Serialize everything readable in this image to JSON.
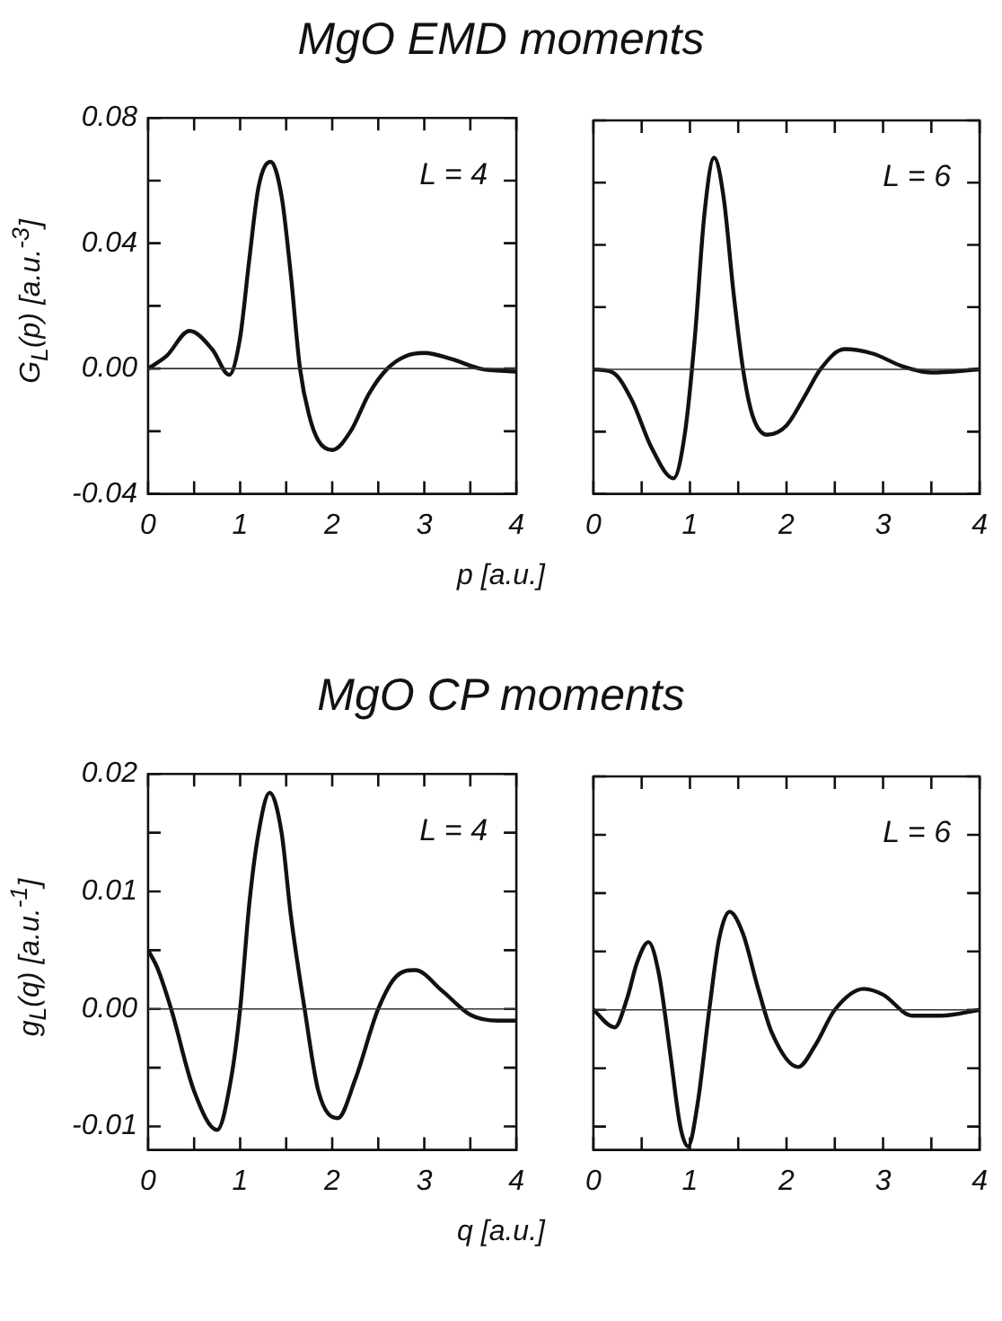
{
  "chart_data": [
    {
      "type": "line",
      "title": "MgO   EMD   moments",
      "xlabel": "p  [a.u.]",
      "ylabel": "G$_{L}$(p)  [a.u.$^{-3}$]",
      "annotations": [
        "L = 4"
      ],
      "marker": "none",
      "line_style": "solid",
      "grid": false,
      "xlim": [
        0,
        4
      ],
      "xticks": [
        0,
        {
          "value": 0.5,
          "label": null
        },
        1,
        {
          "value": 1.5,
          "label": null
        },
        2,
        {
          "value": 2.5,
          "label": null
        },
        3,
        {
          "value": 3.5,
          "label": null
        },
        4
      ],
      "ylim": [
        -0.04,
        0.08
      ],
      "yticks": [
        {
          "value": -0.04,
          "label": "-0.04"
        },
        {
          "value": -0.02,
          "label": null
        },
        {
          "value": 0,
          "label": "0.00"
        },
        {
          "value": 0.02,
          "label": null
        },
        {
          "value": 0.04,
          "label": "0.04"
        },
        {
          "value": 0.06,
          "label": null
        },
        {
          "value": 0.08,
          "label": "0.08"
        }
      ],
      "ref_lines": [
        {
          "axis": "y",
          "value": 0
        }
      ],
      "series": [
        {
          "color": "#111111",
          "x": [
            0,
            0.2,
            0.45,
            0.7,
            0.88,
            1.0,
            1.1,
            1.2,
            1.33,
            1.45,
            1.55,
            1.65,
            1.75,
            1.85,
            2.0,
            2.2,
            2.4,
            2.6,
            2.8,
            3.0,
            3.3,
            3.6,
            4.0
          ],
          "values": [
            0,
            0.004,
            0.012,
            0.006,
            -0.002,
            0.01,
            0.035,
            0.058,
            0.066,
            0.055,
            0.03,
            0,
            -0.015,
            -0.023,
            -0.026,
            -0.02,
            -0.008,
            0,
            0.004,
            0.005,
            0.003,
            0,
            -0.001
          ]
        }
      ]
    },
    {
      "type": "line",
      "annotations": [
        "L = 6"
      ],
      "marker": "none",
      "line_style": "solid",
      "grid": false,
      "tick_labels": "x",
      "xlim": [
        0,
        4
      ],
      "xticks": [
        0,
        {
          "value": 0.5,
          "label": null
        },
        1,
        {
          "value": 1.5,
          "label": null
        },
        2,
        {
          "value": 2.5,
          "label": null
        },
        3,
        {
          "value": 3.5,
          "label": null
        },
        4
      ],
      "ylim": [
        -0.04,
        0.08
      ],
      "yticks": [
        {
          "value": -0.04,
          "label": null
        },
        {
          "value": -0.02,
          "label": null
        },
        {
          "value": 0,
          "label": null
        },
        {
          "value": 0.02,
          "label": null
        },
        {
          "value": 0.04,
          "label": null
        },
        {
          "value": 0.06,
          "label": null
        },
        {
          "value": 0.08,
          "label": null
        }
      ],
      "ref_lines": [
        {
          "axis": "y",
          "value": 0
        }
      ],
      "series": [
        {
          "color": "#111111",
          "x": [
            0,
            0.2,
            0.4,
            0.6,
            0.83,
            0.95,
            1.05,
            1.15,
            1.25,
            1.35,
            1.45,
            1.55,
            1.65,
            1.8,
            2.0,
            2.2,
            2.35,
            2.6,
            2.9,
            3.2,
            3.5,
            4.0
          ],
          "values": [
            0,
            -0.001,
            -0.01,
            -0.025,
            -0.035,
            -0.02,
            0.01,
            0.05,
            0.068,
            0.055,
            0.025,
            0,
            -0.015,
            -0.021,
            -0.018,
            -0.008,
            0,
            0.0065,
            0.005,
            0.001,
            -0.001,
            0
          ]
        }
      ]
    },
    {
      "type": "line",
      "title": "MgO   CP   moments",
      "xlabel": "q  [a.u.]",
      "ylabel": "g$_{L}$(q)  [a.u.$^{-1}$]",
      "annotations": [
        "L = 4"
      ],
      "marker": "none",
      "line_style": "solid",
      "grid": false,
      "xlim": [
        0,
        4
      ],
      "xticks": [
        0,
        {
          "value": 0.5,
          "label": null
        },
        1,
        {
          "value": 1.5,
          "label": null
        },
        2,
        {
          "value": 2.5,
          "label": null
        },
        3,
        {
          "value": 3.5,
          "label": null
        },
        4
      ],
      "ylim": [
        -0.012,
        0.02
      ],
      "yticks": [
        {
          "value": -0.01,
          "label": "-0.01"
        },
        {
          "value": -0.005,
          "label": null
        },
        {
          "value": 0,
          "label": "0.00"
        },
        {
          "value": 0.005,
          "label": null
        },
        {
          "value": 0.01,
          "label": "0.01"
        },
        {
          "value": 0.015,
          "label": null
        },
        {
          "value": 0.02,
          "label": "0.02"
        }
      ],
      "ref_lines": [
        {
          "axis": "y",
          "value": 0
        }
      ],
      "series": [
        {
          "color": "#111111",
          "x": [
            0,
            0.1,
            0.25,
            0.5,
            0.75,
            0.9,
            1.0,
            1.1,
            1.2,
            1.32,
            1.45,
            1.55,
            1.7,
            1.85,
            2.06,
            2.25,
            2.5,
            2.7,
            2.9,
            3.2,
            3.5,
            3.8,
            4.0
          ],
          "values": [
            0.005,
            0.0035,
            0,
            -0.007,
            -0.0103,
            -0.006,
            0,
            0.009,
            0.015,
            0.0184,
            0.015,
            0.008,
            0,
            -0.007,
            -0.0093,
            -0.006,
            0,
            0.0028,
            0.0033,
            0.0015,
            -0.0005,
            -0.001,
            -0.001
          ]
        }
      ]
    },
    {
      "type": "line",
      "annotations": [
        "L = 6"
      ],
      "marker": "none",
      "line_style": "solid",
      "grid": false,
      "tick_labels": "x",
      "xlim": [
        0,
        4
      ],
      "xticks": [
        0,
        {
          "value": 0.5,
          "label": null
        },
        1,
        {
          "value": 1.5,
          "label": null
        },
        2,
        {
          "value": 2.5,
          "label": null
        },
        3,
        {
          "value": 3.5,
          "label": null
        },
        4
      ],
      "ylim": [
        -0.012,
        0.02
      ],
      "yticks": [
        {
          "value": -0.01,
          "label": null
        },
        {
          "value": -0.005,
          "label": null
        },
        {
          "value": 0,
          "label": null
        },
        {
          "value": 0.005,
          "label": null
        },
        {
          "value": 0.01,
          "label": null
        },
        {
          "value": 0.015,
          "label": null
        },
        {
          "value": 0.02,
          "label": null
        }
      ],
      "ref_lines": [
        {
          "axis": "y",
          "value": 0
        }
      ],
      "series": [
        {
          "color": "#111111",
          "x": [
            0,
            0.22,
            0.35,
            0.45,
            0.57,
            0.68,
            0.8,
            0.9,
            0.98,
            1.08,
            1.2,
            1.3,
            1.41,
            1.55,
            1.7,
            1.85,
            2.12,
            2.3,
            2.5,
            2.8,
            3.0,
            3.3,
            3.6,
            4.0
          ],
          "values": [
            0,
            -0.0015,
            0.001,
            0.004,
            0.0058,
            0.003,
            -0.004,
            -0.01,
            -0.0117,
            -0.008,
            0,
            0.006,
            0.0084,
            0.0065,
            0.002,
            -0.002,
            -0.0049,
            -0.003,
            0,
            0.0018,
            0.0013,
            -0.0005,
            -0.0005,
            0
          ]
        }
      ]
    }
  ]
}
